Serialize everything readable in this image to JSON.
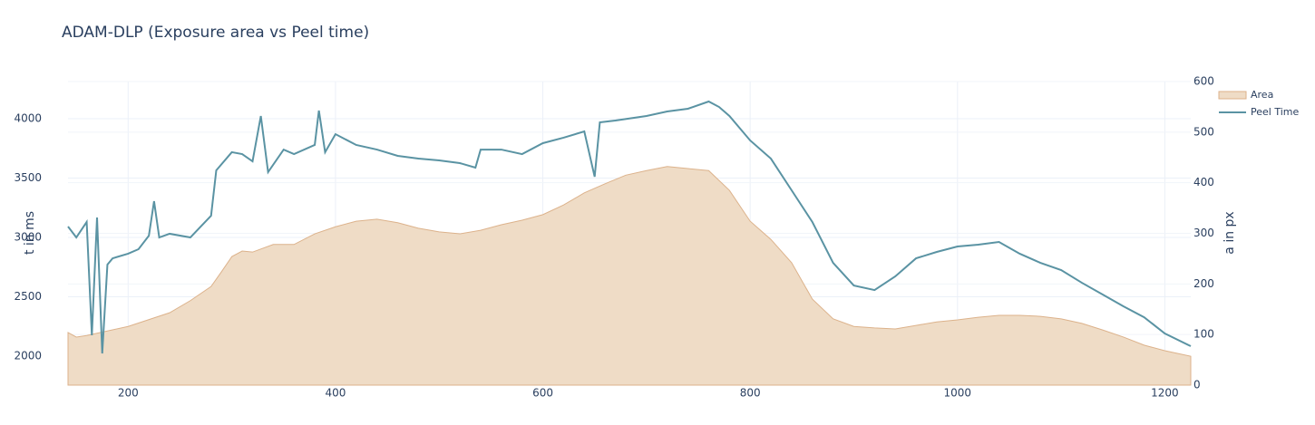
{
  "chart_data": {
    "type": "line",
    "title": "ADAM-DLP (Exposure area vs Peel time)",
    "y_label": "t in ms",
    "y2_label": "a in px",
    "xlim": [
      142,
      1225
    ],
    "xticks": [
      200,
      400,
      600,
      800,
      1000,
      1200
    ],
    "ylim": [
      1756,
      4313
    ],
    "yticks": [
      2000,
      2500,
      3000,
      3500,
      4000
    ],
    "y2lim": [
      0,
      600
    ],
    "y2ticks": [
      0,
      100,
      200,
      300,
      400,
      500,
      600
    ],
    "grid": true,
    "legend": "top-right",
    "series": [
      {
        "name": "Area",
        "type": "area",
        "axis": "y2",
        "color": "#dcb28b",
        "fill": "#efdcc6",
        "x": [
          142,
          150,
          160,
          200,
          240,
          260,
          280,
          290,
          300,
          310,
          320,
          340,
          360,
          380,
          400,
          420,
          440,
          460,
          480,
          500,
          520,
          540,
          560,
          580,
          600,
          620,
          640,
          660,
          680,
          700,
          720,
          740,
          760,
          780,
          800,
          820,
          840,
          860,
          880,
          900,
          920,
          940,
          960,
          980,
          1000,
          1020,
          1040,
          1060,
          1080,
          1100,
          1120,
          1140,
          1160,
          1180,
          1200,
          1225
        ],
        "values": [
          104,
          95,
          98,
          116,
          143,
          167,
          195,
          224,
          254,
          265,
          263,
          278,
          278,
          299,
          313,
          324,
          328,
          321,
          310,
          303,
          299,
          306,
          317,
          326,
          337,
          356,
          380,
          398,
          415,
          424,
          432,
          428,
          424,
          385,
          324,
          288,
          242,
          170,
          131,
          116,
          113,
          111,
          118,
          125,
          129,
          134,
          138,
          138,
          136,
          131,
          122,
          109,
          95,
          79,
          68,
          57
        ]
      },
      {
        "name": "Peel Time",
        "type": "line",
        "axis": "y",
        "color": "#5a93a3",
        "x": [
          142,
          150,
          160,
          165,
          170,
          175,
          180,
          185,
          200,
          210,
          220,
          225,
          230,
          240,
          260,
          280,
          285,
          300,
          310,
          320,
          328,
          335,
          350,
          360,
          380,
          384,
          390,
          400,
          420,
          440,
          460,
          480,
          500,
          520,
          535,
          540,
          560,
          580,
          600,
          620,
          640,
          650,
          655,
          670,
          700,
          720,
          740,
          760,
          770,
          780,
          800,
          820,
          840,
          860,
          880,
          900,
          920,
          940,
          960,
          980,
          1000,
          1020,
          1040,
          1060,
          1080,
          1100,
          1120,
          1140,
          1160,
          1180,
          1200,
          1225
        ],
        "values": [
          3092,
          3000,
          3130,
          2176,
          3168,
          2023,
          2771,
          2824,
          2863,
          2901,
          3015,
          3305,
          3000,
          3031,
          3000,
          3183,
          3565,
          3718,
          3702,
          3641,
          4023,
          3550,
          3740,
          3702,
          3779,
          4069,
          3718,
          3870,
          3779,
          3740,
          3687,
          3664,
          3649,
          3626,
          3588,
          3740,
          3740,
          3702,
          3794,
          3840,
          3893,
          3511,
          3969,
          3985,
          4023,
          4061,
          4084,
          4145,
          4099,
          4023,
          3817,
          3664,
          3397,
          3130,
          2786,
          2595,
          2557,
          2672,
          2824,
          2878,
          2924,
          2939,
          2962,
          2863,
          2786,
          2725,
          2618,
          2519,
          2420,
          2328,
          2191,
          2084
        ]
      }
    ]
  }
}
